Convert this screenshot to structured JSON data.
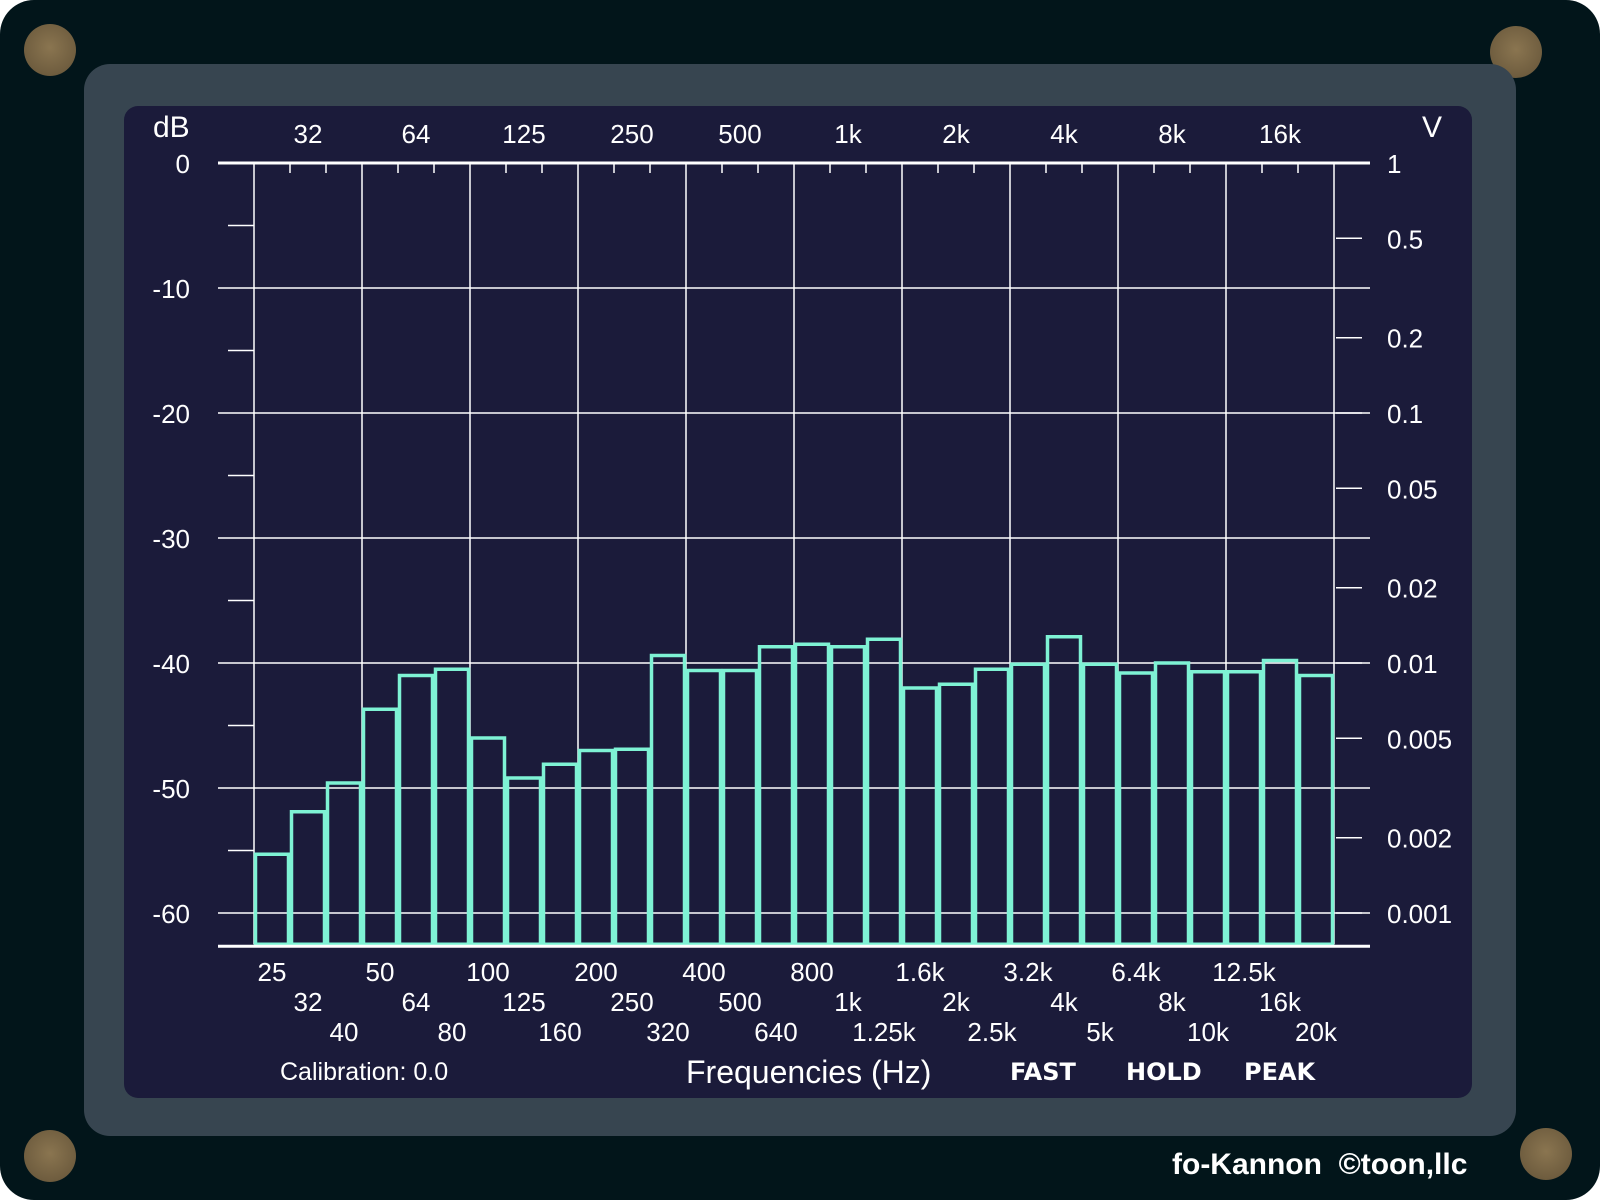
{
  "app": {
    "brand": "fo-Kannon  ©toon,llc"
  },
  "colors": {
    "device": "#02151a",
    "bezel": "#374550",
    "screen": "#1b1b3a",
    "bar": "#7ef2d4",
    "grid": "#ffffff",
    "screw": "#8a7550"
  },
  "footer": {
    "calibration": "Calibration: 0.0",
    "x_title": "Frequencies (Hz)",
    "modes": [
      "FAST",
      "HOLD",
      "PEAK"
    ]
  },
  "chart_data": {
    "type": "bar",
    "y_unit_left": "dB",
    "y_unit_right": "V",
    "ylim": [
      -62.5,
      0
    ],
    "y_ticks_left": [
      0,
      -10,
      -20,
      -30,
      -40,
      -50,
      -60
    ],
    "y_ticks_right": [
      {
        "label": "1",
        "value": 1
      },
      {
        "label": "0.5",
        "value": 0.5
      },
      {
        "label": "0.2",
        "value": 0.2
      },
      {
        "label": "0.1",
        "value": 0.1
      },
      {
        "label": "0.05",
        "value": 0.05
      },
      {
        "label": "0.02",
        "value": 0.02
      },
      {
        "label": "0.01",
        "value": 0.01
      },
      {
        "label": "0.005",
        "value": 0.005
      },
      {
        "label": "0.002",
        "value": 0.002
      },
      {
        "label": "0.001",
        "value": 0.001
      }
    ],
    "top_octave_labels": [
      "32",
      "64",
      "125",
      "250",
      "500",
      "1k",
      "2k",
      "4k",
      "8k",
      "16k"
    ],
    "categories": [
      "25",
      "32",
      "40",
      "50",
      "64",
      "80",
      "100",
      "125",
      "160",
      "200",
      "250",
      "320",
      "400",
      "500",
      "640",
      "800",
      "1k",
      "1.25k",
      "1.6k",
      "2k",
      "2.5k",
      "3.2k",
      "4k",
      "5k",
      "6.4k",
      "8k",
      "10k",
      "12.5k",
      "16k",
      "20k"
    ],
    "values": [
      -55.3,
      -51.9,
      -49.6,
      -43.7,
      -41.0,
      -40.5,
      -46.0,
      -49.2,
      -48.1,
      -47.0,
      -46.9,
      -39.4,
      -40.6,
      -40.6,
      -38.7,
      -38.5,
      -38.7,
      -38.1,
      -42.0,
      -41.7,
      -40.5,
      -40.1,
      -37.9,
      -40.1,
      -40.8,
      -40.0,
      -40.7,
      -40.7,
      -39.8,
      -41.0
    ],
    "grid": true
  }
}
